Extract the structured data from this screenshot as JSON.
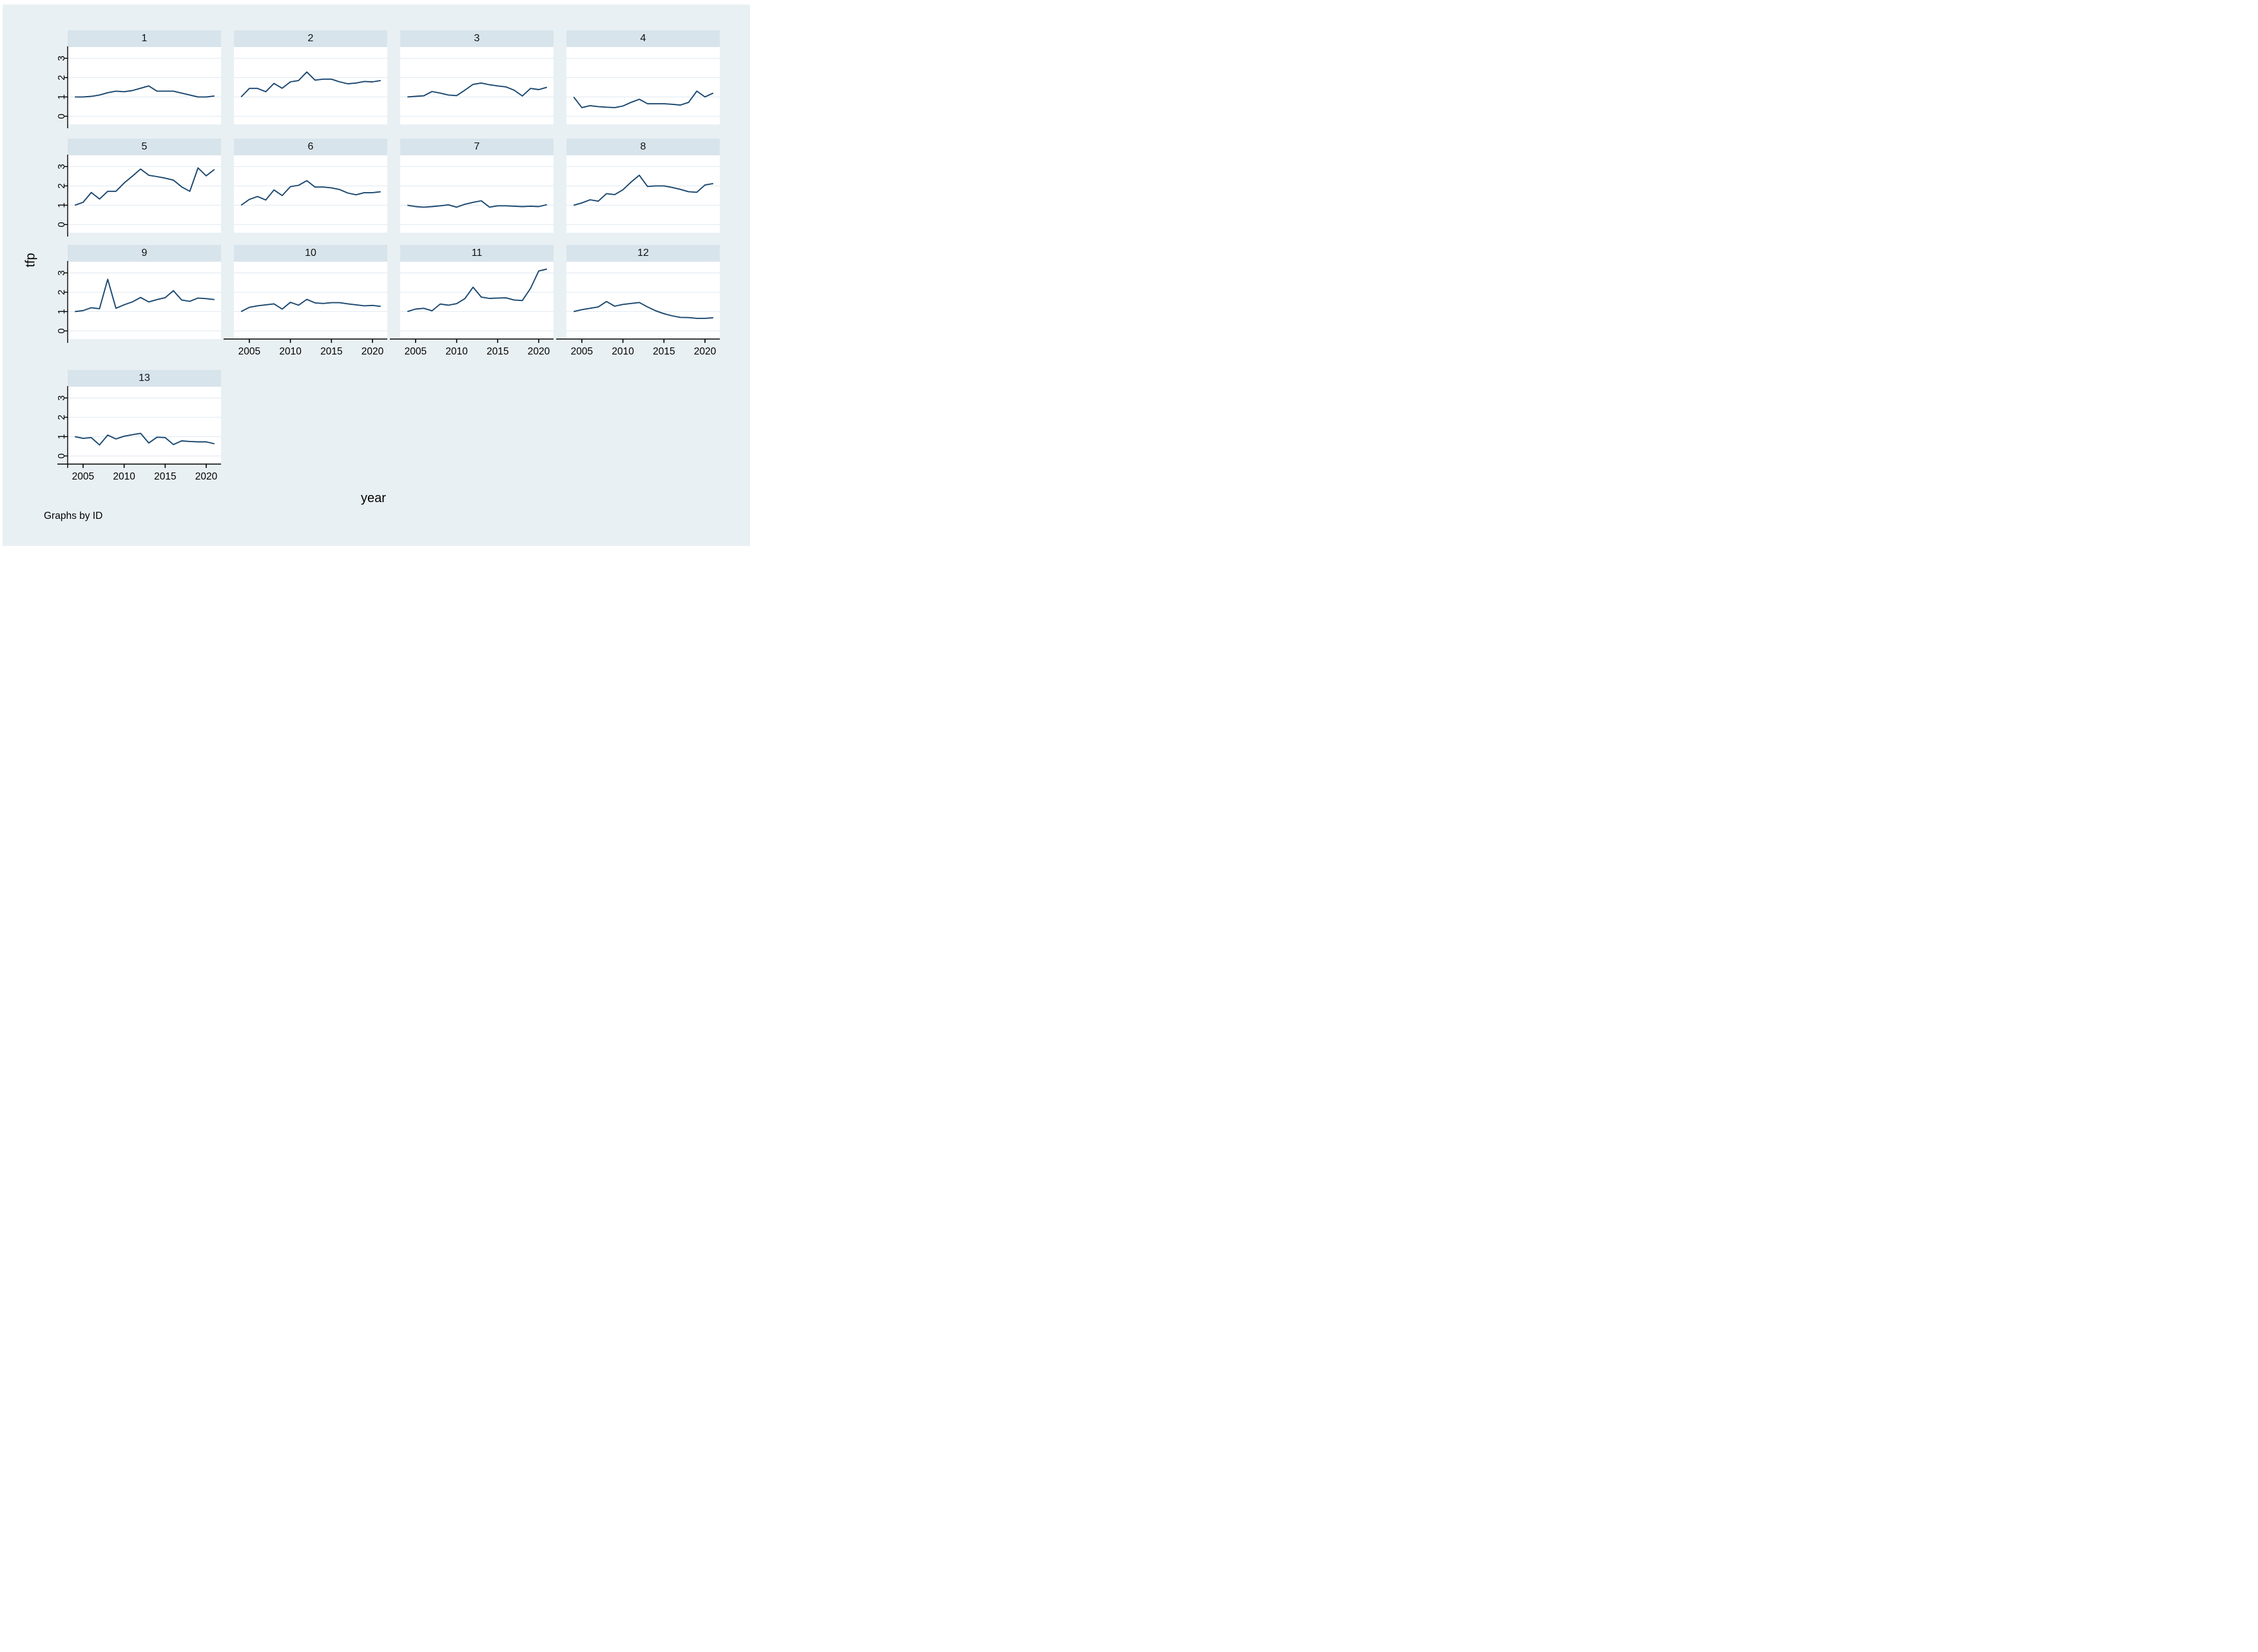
{
  "figure": {
    "ylabel": "tfp",
    "xlabel": "year",
    "caption": "Graphs by ID"
  },
  "colors": {
    "page_bg": "#ffffff",
    "graph_bg": "#e9f0f3",
    "header_bg": "#d8e4ec",
    "plot_bg": "#ffffff",
    "gridline": "#e2ecf2",
    "line": "#1a476f",
    "axis": "#000000",
    "text": "#000000"
  },
  "chart_data": {
    "type": "line",
    "facet_by": "ID",
    "title": "",
    "xlabel": "year",
    "ylabel": "tfp",
    "x": [
      2004,
      2005,
      2006,
      2007,
      2008,
      2009,
      2010,
      2011,
      2012,
      2013,
      2014,
      2015,
      2016,
      2017,
      2018,
      2019,
      2020,
      2021
    ],
    "x_tick_labels": [
      "2005",
      "2010",
      "2015",
      "2020"
    ],
    "x_ticks": [
      2005,
      2010,
      2015,
      2020
    ],
    "y_tick_labels": [
      "0",
      "1",
      "2",
      "3"
    ],
    "y_ticks": [
      0,
      1,
      2,
      3
    ],
    "ylim": [
      -0.42,
      3.58
    ],
    "grid": "horizontal",
    "legend_position": "none",
    "panels": [
      {
        "id": "1",
        "values": [
          1.0,
          1.0,
          1.03,
          1.1,
          1.22,
          1.3,
          1.27,
          1.33,
          1.45,
          1.57,
          1.3,
          1.3,
          1.3,
          1.2,
          1.1,
          1.0,
          1.0,
          1.05
        ]
      },
      {
        "id": "2",
        "values": [
          1.0,
          1.44,
          1.44,
          1.27,
          1.7,
          1.45,
          1.78,
          1.85,
          2.29,
          1.87,
          1.92,
          1.92,
          1.78,
          1.68,
          1.72,
          1.8,
          1.78,
          1.85
        ]
      },
      {
        "id": "3",
        "values": [
          1.0,
          1.03,
          1.06,
          1.28,
          1.2,
          1.1,
          1.07,
          1.35,
          1.65,
          1.72,
          1.63,
          1.57,
          1.52,
          1.35,
          1.05,
          1.44,
          1.38,
          1.5
        ]
      },
      {
        "id": "4",
        "values": [
          1.0,
          0.45,
          0.55,
          0.5,
          0.47,
          0.45,
          0.53,
          0.72,
          0.88,
          0.65,
          0.65,
          0.65,
          0.62,
          0.58,
          0.72,
          1.3,
          1.0,
          1.2
        ]
      },
      {
        "id": "5",
        "values": [
          1.0,
          1.15,
          1.66,
          1.32,
          1.72,
          1.72,
          2.15,
          2.5,
          2.87,
          2.55,
          2.48,
          2.4,
          2.3,
          1.95,
          1.72,
          2.93,
          2.52,
          2.85
        ]
      },
      {
        "id": "6",
        "values": [
          1.0,
          1.3,
          1.45,
          1.27,
          1.79,
          1.5,
          1.96,
          2.03,
          2.27,
          1.94,
          1.94,
          1.9,
          1.81,
          1.63,
          1.54,
          1.65,
          1.65,
          1.7
        ]
      },
      {
        "id": "7",
        "values": [
          1.0,
          0.93,
          0.9,
          0.93,
          0.97,
          1.02,
          0.9,
          1.05,
          1.15,
          1.23,
          0.9,
          0.97,
          0.97,
          0.95,
          0.93,
          0.95,
          0.93,
          1.03
        ]
      },
      {
        "id": "8",
        "values": [
          1.0,
          1.12,
          1.28,
          1.21,
          1.6,
          1.55,
          1.8,
          2.2,
          2.55,
          1.97,
          2.0,
          2.0,
          1.92,
          1.82,
          1.7,
          1.67,
          2.05,
          2.12
        ]
      },
      {
        "id": "9",
        "values": [
          1.0,
          1.05,
          1.2,
          1.15,
          2.67,
          1.17,
          1.35,
          1.5,
          1.73,
          1.5,
          1.62,
          1.72,
          2.08,
          1.6,
          1.53,
          1.7,
          1.67,
          1.62
        ]
      },
      {
        "id": "10",
        "values": [
          1.0,
          1.22,
          1.3,
          1.35,
          1.4,
          1.13,
          1.48,
          1.33,
          1.63,
          1.45,
          1.42,
          1.46,
          1.46,
          1.4,
          1.35,
          1.3,
          1.32,
          1.27
        ]
      },
      {
        "id": "11",
        "values": [
          1.0,
          1.13,
          1.17,
          1.04,
          1.39,
          1.33,
          1.41,
          1.67,
          2.26,
          1.75,
          1.68,
          1.7,
          1.71,
          1.6,
          1.57,
          2.2,
          3.1,
          3.2
        ]
      },
      {
        "id": "12",
        "values": [
          1.0,
          1.1,
          1.17,
          1.24,
          1.52,
          1.28,
          1.37,
          1.42,
          1.47,
          1.24,
          1.04,
          0.89,
          0.78,
          0.7,
          0.69,
          0.65,
          0.65,
          0.68
        ]
      },
      {
        "id": "13",
        "values": [
          1.0,
          0.91,
          0.95,
          0.57,
          1.08,
          0.88,
          1.02,
          1.1,
          1.17,
          0.67,
          0.97,
          0.95,
          0.59,
          0.78,
          0.75,
          0.73,
          0.73,
          0.63
        ]
      }
    ]
  }
}
